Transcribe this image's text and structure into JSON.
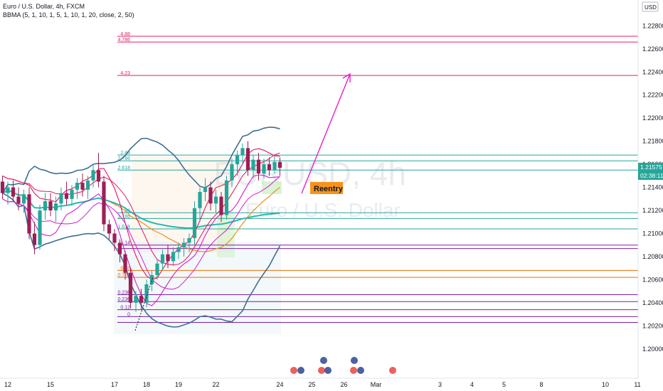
{
  "header": {
    "title": "Euro / U.S. Dollar, 4h, FXCM",
    "indicator": "BBMA (5, 1, 10, 1, 5, 1, 10, 1, 20, close, 2, 50)"
  },
  "watermark": {
    "symbol": "EURUSD, 4h",
    "name": "Euro / U.S. Dollar"
  },
  "currency": "USD",
  "annotation": {
    "reentry_label": "Reentry",
    "reentry_color": "#f7931a",
    "arrow_color": "#e91ec8"
  },
  "price_badge": {
    "price": "1.21575",
    "countdown": "02:38:11",
    "color": "#26a69a"
  },
  "colors": {
    "bull": "#26a69a",
    "bear": "#9c1f55",
    "ma_hi": "#e8125a",
    "ma_lo": "#d61bd1",
    "ema50": "#2bb7b0",
    "bb": "#3f6f95",
    "mid": "#f08c1e"
  },
  "chart_data": {
    "type": "candlestick",
    "ylim": [
      1.1982,
      1.2295
    ],
    "yticks": [
      "1.22800",
      "1.22600",
      "1.22400",
      "1.22200",
      "1.22000",
      "1.21800",
      "1.21600",
      "1.21400",
      "1.21200",
      "1.21000",
      "1.20800",
      "1.20600",
      "1.20400",
      "1.20200",
      "1.20000"
    ],
    "xticks": [
      {
        "label": "12",
        "t": 1
      },
      {
        "label": "15",
        "t": 9
      },
      {
        "label": "17",
        "t": 21
      },
      {
        "label": "18",
        "t": 27
      },
      {
        "label": "19",
        "t": 33
      },
      {
        "label": "22",
        "t": 40
      },
      {
        "label": "24",
        "t": 52
      },
      {
        "label": "25",
        "t": 58
      },
      {
        "label": "26",
        "t": 64
      },
      {
        "label": "Mar",
        "t": 70
      },
      {
        "label": "3",
        "t": 82
      },
      {
        "label": "4",
        "t": 88
      },
      {
        "label": "5",
        "t": 94
      },
      {
        "label": "8",
        "t": 101
      },
      {
        "label": "10",
        "t": 113
      },
      {
        "label": "11",
        "t": 119
      }
    ],
    "fib_levels": [
      {
        "label": "4.88",
        "y": 1.2271,
        "color": "#e91e63"
      },
      {
        "label": "4.786",
        "y": 1.2266,
        "color": "#e91e63"
      },
      {
        "label": "4.23",
        "y": 1.2237,
        "color": "#e91e63"
      },
      {
        "label": "2.88",
        "y": 1.2168,
        "color": "#26a69a"
      },
      {
        "label": "2.786",
        "y": 1.2163,
        "color": "#26a69a"
      },
      {
        "label": "2.618",
        "y": 1.2155,
        "color": "#26a69a"
      },
      {
        "label": "1.88",
        "y": 1.2118,
        "color": "#26a69a"
      },
      {
        "label": "1.786",
        "y": 1.2113,
        "color": "#26a69a"
      },
      {
        "label": "1.618",
        "y": 1.2104,
        "color": "#26a69a"
      },
      {
        "label": "1.14",
        "y": 1.209,
        "color": "#7b1fa2"
      },
      {
        "label": "",
        "y": 1.2087,
        "color": "#7b1fa2"
      },
      {
        "label": "0.88",
        "y": 1.2068,
        "color": "#ef6c00"
      },
      {
        "label": "0.786",
        "y": 1.2062,
        "color": "#ef6c00"
      },
      {
        "label": "0.236",
        "y": 1.2047,
        "color": "#7b1fa2"
      },
      {
        "label": "0.236",
        "y": 1.2041,
        "color": "#7b1fa2"
      },
      {
        "label": "0.12",
        "y": 1.2034,
        "color": "#7b1fa2"
      },
      {
        "label": "0",
        "y": 1.2028,
        "color": "#7b1fa2"
      },
      {
        "label": "",
        "y": 1.2023,
        "color": "#7b1fa2"
      }
    ],
    "candles": [
      [
        1.2145,
        1.215,
        1.213,
        1.2135
      ],
      [
        1.2135,
        1.2145,
        1.2125,
        1.214
      ],
      [
        1.214,
        1.2146,
        1.2128,
        1.2132
      ],
      [
        1.2132,
        1.214,
        1.212,
        1.2126
      ],
      [
        1.2126,
        1.2138,
        1.2118,
        1.2134
      ],
      [
        1.2134,
        1.214,
        1.2095,
        1.21
      ],
      [
        1.21,
        1.211,
        1.2082,
        1.209
      ],
      [
        1.209,
        1.2125,
        1.2086,
        1.212
      ],
      [
        1.212,
        1.2135,
        1.2112,
        1.2128
      ],
      [
        1.2128,
        1.2135,
        1.2115,
        1.212
      ],
      [
        1.212,
        1.2132,
        1.211,
        1.2126
      ],
      [
        1.2126,
        1.214,
        1.212,
        1.2135
      ],
      [
        1.2135,
        1.2145,
        1.2125,
        1.213
      ],
      [
        1.213,
        1.2142,
        1.2124,
        1.2138
      ],
      [
        1.2138,
        1.2148,
        1.213,
        1.2144
      ],
      [
        1.2144,
        1.2152,
        1.2132,
        1.2138
      ],
      [
        1.2138,
        1.215,
        1.213,
        1.2146
      ],
      [
        1.2146,
        1.216,
        1.214,
        1.2155
      ],
      [
        1.2155,
        1.217,
        1.214,
        1.2145
      ],
      [
        1.2145,
        1.215,
        1.2102,
        1.2108
      ],
      [
        1.2108,
        1.2112,
        1.2095,
        1.21
      ],
      [
        1.21,
        1.2104,
        1.2085,
        1.2092
      ],
      [
        1.2092,
        1.2095,
        1.2075,
        1.2082
      ],
      [
        1.2082,
        1.2085,
        1.206,
        1.2066
      ],
      [
        1.2066,
        1.207,
        1.2035,
        1.204
      ],
      [
        1.204,
        1.205,
        1.2032,
        1.2046
      ],
      [
        1.2046,
        1.2052,
        1.2034,
        1.204
      ],
      [
        1.204,
        1.206,
        1.2036,
        1.2056
      ],
      [
        1.2056,
        1.2068,
        1.205,
        1.2064
      ],
      [
        1.2064,
        1.2078,
        1.206,
        1.2074
      ],
      [
        1.2074,
        1.2086,
        1.2068,
        1.2082
      ],
      [
        1.2082,
        1.209,
        1.207,
        1.2076
      ],
      [
        1.2076,
        1.2088,
        1.2072,
        1.2084
      ],
      [
        1.2084,
        1.2092,
        1.2078,
        1.2088
      ],
      [
        1.2088,
        1.2096,
        1.208,
        1.2092
      ],
      [
        1.2092,
        1.21,
        1.2084,
        1.2096
      ],
      [
        1.2096,
        1.2128,
        1.209,
        1.2122
      ],
      [
        1.2122,
        1.214,
        1.211,
        1.2136
      ],
      [
        1.2136,
        1.2148,
        1.2128,
        1.214
      ],
      [
        1.214,
        1.2145,
        1.212,
        1.2126
      ],
      [
        1.2126,
        1.2138,
        1.2118,
        1.2132
      ],
      [
        1.2132,
        1.2136,
        1.211,
        1.2116
      ],
      [
        1.2116,
        1.215,
        1.2112,
        1.2146
      ],
      [
        1.2146,
        1.2165,
        1.214,
        1.216
      ],
      [
        1.216,
        1.2172,
        1.215,
        1.2168
      ],
      [
        1.2168,
        1.2178,
        1.216,
        1.2174
      ],
      [
        1.2174,
        1.218,
        1.215,
        1.2155
      ],
      [
        1.2155,
        1.2168,
        1.2148,
        1.2164
      ],
      [
        1.2164,
        1.217,
        1.2146,
        1.2152
      ],
      [
        1.2152,
        1.2165,
        1.2148,
        1.216
      ],
      [
        1.216,
        1.2166,
        1.215,
        1.2155
      ],
      [
        1.2155,
        1.2168,
        1.2152,
        1.2162
      ],
      [
        1.2162,
        1.2166,
        1.215,
        1.2157
      ]
    ]
  }
}
